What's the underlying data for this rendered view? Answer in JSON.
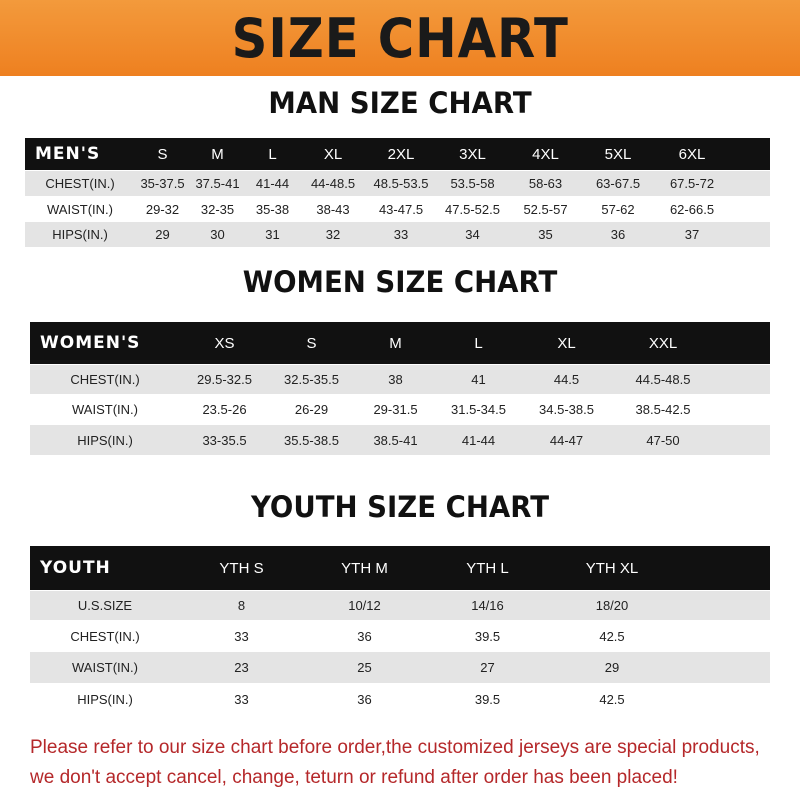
{
  "banner": {
    "title": "SIZE CHART",
    "colors": {
      "orange": "#f08a2a",
      "header_row": "#111111",
      "stripe": "#e4e4e4",
      "note": "#b5282a"
    }
  },
  "men": {
    "title": "MAN SIZE CHART",
    "header": [
      "MEN'S",
      "S",
      "M",
      "L",
      "XL",
      "2XL",
      "3XL",
      "4XL",
      "5XL",
      "6XL"
    ],
    "rows": [
      [
        "CHEST(IN.)",
        "35-37.5",
        "37.5-41",
        "41-44",
        "44-48.5",
        "48.5-53.5",
        "53.5-58",
        "58-63",
        "63-67.5",
        "67.5-72"
      ],
      [
        "WAIST(IN.)",
        "29-32",
        "32-35",
        "35-38",
        "38-43",
        "43-47.5",
        "47.5-52.5",
        "52.5-57",
        "57-62",
        "62-66.5"
      ],
      [
        "HIPS(IN.)",
        "29",
        "30",
        "31",
        "32",
        "33",
        "34",
        "35",
        "36",
        "37"
      ]
    ]
  },
  "women": {
    "title": "WOMEN SIZE CHART",
    "header": [
      "WOMEN'S",
      "XS",
      "S",
      "M",
      "L",
      "XL",
      "XXL"
    ],
    "rows": [
      [
        "CHEST(IN.)",
        "29.5-32.5",
        "32.5-35.5",
        "38",
        "41",
        "44.5",
        "44.5-48.5"
      ],
      [
        "WAIST(IN.)",
        "23.5-26",
        "26-29",
        "29-31.5",
        "31.5-34.5",
        "34.5-38.5",
        "38.5-42.5"
      ],
      [
        "HIPS(IN.)",
        "33-35.5",
        "35.5-38.5",
        "38.5-41",
        "41-44",
        "44-47",
        "47-50"
      ]
    ]
  },
  "youth": {
    "title": "YOUTH SIZE CHART",
    "header": [
      "YOUTH",
      "YTH S",
      "YTH M",
      "YTH L",
      "YTH XL"
    ],
    "rows": [
      [
        "U.S.SIZE",
        "8",
        "10/12",
        "14/16",
        "18/20"
      ],
      [
        "CHEST(IN.)",
        "33",
        "36",
        "39.5",
        "42.5"
      ],
      [
        "WAIST(IN.)",
        "23",
        "25",
        "27",
        "29"
      ],
      [
        "HIPS(IN.)",
        "33",
        "36",
        "39.5",
        "42.5"
      ]
    ]
  },
  "note": {
    "line1": "Please refer to our size chart before order,the customized jerseys are special products,",
    "line2": "we don't accept cancel, change, teturn or refund after order has been placed!"
  }
}
